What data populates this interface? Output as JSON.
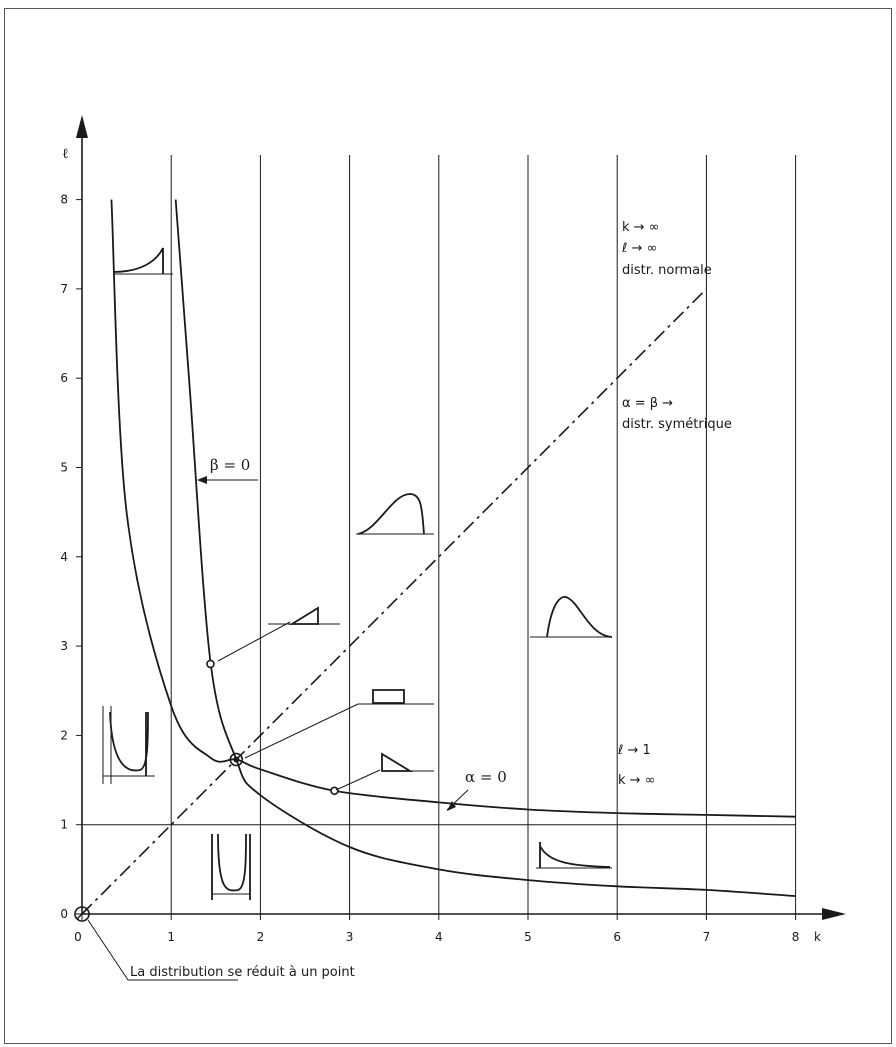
{
  "chart_data": {
    "type": "line",
    "xlabel": "k",
    "ylabel": "ℓ",
    "xlim": [
      0,
      8
    ],
    "ylim": [
      0,
      8
    ],
    "x_ticks": [
      "0",
      "1",
      "2",
      "3",
      "4",
      "5",
      "6",
      "7",
      "8"
    ],
    "y_ticks": [
      "0",
      "1",
      "2",
      "3",
      "4",
      "5",
      "6",
      "7",
      "8"
    ],
    "grid": "vertical",
    "series": [
      {
        "name": "β = 0",
        "x": [
          1.05,
          1.2,
          1.44,
          1.73,
          2,
          3,
          4,
          5,
          6,
          7,
          8
        ],
        "y": [
          8,
          6,
          2.83,
          1.73,
          1.33,
          0.75,
          0.5,
          0.38,
          0.31,
          0.27,
          0.2
        ]
      },
      {
        "name": "α = 0",
        "x": [
          0.33,
          0.5,
          1,
          1.44,
          1.73,
          2,
          2.83,
          4,
          5,
          6,
          7,
          8
        ],
        "y": [
          8,
          4.5,
          2.33,
          1.75,
          1.73,
          1.62,
          1.38,
          1.25,
          1.17,
          1.13,
          1.11,
          1.09
        ]
      },
      {
        "name": "α = β",
        "x": [
          0,
          7
        ],
        "y": [
          0,
          7
        ]
      }
    ],
    "points": [
      {
        "x": 1.44,
        "y": 2.8
      },
      {
        "x": 2.83,
        "y": 1.38
      },
      {
        "x": 1.73,
        "y": 1.73
      },
      {
        "x": 0,
        "y": 0
      }
    ],
    "annotations": {
      "beta_zero": "β = 0",
      "alpha_zero": "α = 0",
      "limit_k": "k  →  ∞",
      "limit_l": "ℓ  →  ∞",
      "normal": "distr. normale",
      "alpha_beta": "α = β →",
      "symmetric": "distr. symétrique",
      "l_to_one": "ℓ  →  1",
      "k_to_inf": "k  →  ∞",
      "point": "La distribution se réduit à un point"
    }
  },
  "colors": {
    "ink": "#1a1a1a",
    "frame": "#555555",
    "paper": "#ffffff"
  }
}
